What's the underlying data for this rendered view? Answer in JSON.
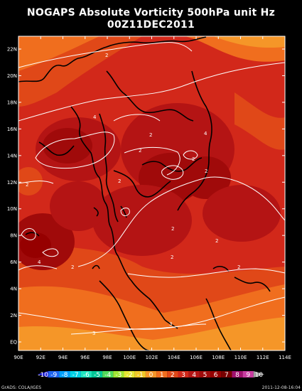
{
  "title": {
    "line1": "NOGAPS Absolute Vorticity 500hPa unit Hz",
    "line2": "00Z11DEC2011"
  },
  "map": {
    "lat_labels": [
      "22N",
      "20N",
      "18N",
      "16N",
      "14N",
      "12N",
      "10N",
      "8N",
      "6N",
      "4N",
      "2N",
      "EQ"
    ],
    "lon_labels": [
      "90E",
      "92E",
      "94E",
      "96E",
      "98E",
      "100E",
      "102E",
      "104E",
      "106E",
      "108E",
      "110E",
      "112E",
      "114E"
    ],
    "contour_labels": [
      "2",
      "2",
      "4",
      "2",
      "2",
      "4",
      "2",
      "2",
      "2",
      "2",
      "2",
      "2",
      "4",
      "2",
      "2",
      "3",
      "3"
    ]
  },
  "colorbar": {
    "labels": [
      "-10",
      "-9",
      "-8",
      "-7",
      "-6",
      "-5",
      "-4",
      "-3",
      "-2",
      "-1",
      "0",
      "1",
      "2",
      "3",
      "4",
      "5",
      "6",
      "7",
      "8",
      "9",
      "10"
    ],
    "colors": [
      "#2626d9",
      "#1e64f0",
      "#00a0ff",
      "#00d2e6",
      "#1ee6be",
      "#00c896",
      "#50dc5a",
      "#a0e632",
      "#e6e632",
      "#f0c828",
      "#f59628",
      "#f06e1e",
      "#e04818",
      "#d2281a",
      "#b41414",
      "#a00a0a",
      "#960000",
      "#780000",
      "#a0106e",
      "#c83ca0",
      "#a0a0a0"
    ]
  },
  "footer": {
    "left": "GrADS: COLA/IGES",
    "right": "2011-12-08-16:04"
  },
  "colors": {
    "background": "#000000",
    "land_outline": "#000000",
    "contour": "#ffffff"
  }
}
